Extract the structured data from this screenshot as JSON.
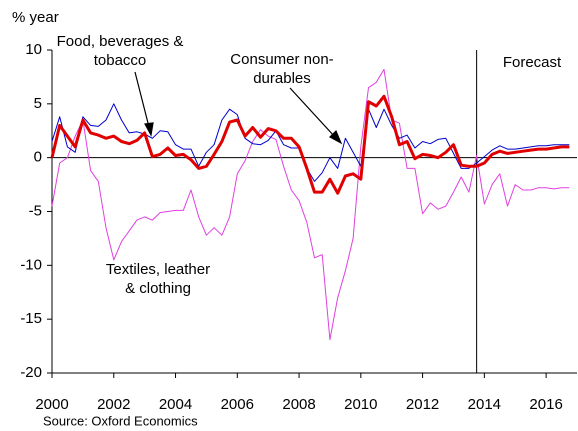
{
  "chart_data": {
    "type": "line",
    "y_label": "% year",
    "source": "Source: Oxford Economics",
    "annotations": [
      {
        "lines": [
          "Food, beverages &",
          "tobacco"
        ]
      },
      {
        "lines": [
          "Consumer non-",
          "durables"
        ]
      },
      {
        "lines": [
          "Textiles, leather",
          "& clothing"
        ]
      },
      {
        "lines": [
          "Forecast"
        ]
      }
    ],
    "forecast_x": 2013.75,
    "xlim": [
      2000,
      2017
    ],
    "xticks": [
      2000,
      2002,
      2004,
      2006,
      2008,
      2010,
      2012,
      2014,
      2016
    ],
    "ylim": [
      -20,
      10
    ],
    "yticks": [
      10,
      5,
      0,
      -5,
      -10,
      -15,
      -20
    ],
    "x": [
      2000,
      2000.25,
      2000.5,
      2000.75,
      2001,
      2001.25,
      2001.5,
      2001.75,
      2002,
      2002.25,
      2002.5,
      2002.75,
      2003,
      2003.25,
      2003.5,
      2003.75,
      2004,
      2004.25,
      2004.5,
      2004.75,
      2005,
      2005.25,
      2005.5,
      2005.75,
      2006,
      2006.25,
      2006.5,
      2006.75,
      2007,
      2007.25,
      2007.5,
      2007.75,
      2008,
      2008.25,
      2008.5,
      2008.75,
      2009,
      2009.25,
      2009.5,
      2009.75,
      2010,
      2010.25,
      2010.5,
      2010.75,
      2011,
      2011.25,
      2011.5,
      2011.75,
      2012,
      2012.25,
      2012.5,
      2012.75,
      2013,
      2013.25,
      2013.5,
      2013.75,
      2014,
      2014.25,
      2014.5,
      2014.75,
      2015,
      2015.25,
      2015.5,
      2015.75,
      2016,
      2016.25,
      2016.5,
      2016.75
    ],
    "series": [
      {
        "name": "Textiles, leather & clothing",
        "color": "#e040e0",
        "width": 1,
        "values": [
          -4.5,
          -0.5,
          0,
          2,
          3.5,
          -1.2,
          -2.2,
          -6.5,
          -9.5,
          -7.8,
          -6.8,
          -5.8,
          -5.5,
          -5.8,
          -5.1,
          -5.0,
          -4.9,
          -4.9,
          -3,
          -5.5,
          -7.2,
          -6.5,
          -7.2,
          -5.5,
          -1.5,
          -0.3,
          1.5,
          2.6,
          2,
          1.7,
          -0.8,
          -3,
          -4,
          -6,
          -9.3,
          -9,
          -16.9,
          -13,
          -10.5,
          -7.5,
          1,
          6.5,
          7,
          8.2,
          3.5,
          3.2,
          -1,
          -1,
          -5.2,
          -4.2,
          -4.8,
          -4.5,
          -3.2,
          -1.8,
          -3.2,
          0.2,
          -4.3,
          -2.5,
          -1.5,
          -4.5,
          -2.5,
          -3,
          -3,
          -2.8,
          -2.8,
          -2.9,
          -2.8,
          -2.8
        ]
      },
      {
        "name": "Food, beverages & tobacco",
        "color": "#0000cc",
        "width": 1,
        "values": [
          1.5,
          3.8,
          1,
          0.5,
          3.8,
          3,
          2.9,
          3.5,
          5,
          3.5,
          2.3,
          2.4,
          2.2,
          1.8,
          2.5,
          2.4,
          1.2,
          0.8,
          0.8,
          -0.8,
          0.5,
          1.2,
          3.5,
          4.5,
          4,
          1.8,
          1.3,
          1.2,
          1.6,
          2.5,
          1.2,
          0.9,
          0.9,
          -1,
          -2.2,
          -1.4,
          0,
          -1,
          1.8,
          0.5,
          -0.8,
          4.5,
          2.8,
          4.5,
          3,
          1.8,
          2.1,
          0.9,
          1.5,
          1.3,
          1.7,
          1.8,
          0.4,
          -1,
          -1,
          -0.5,
          0.1,
          0.7,
          1.1,
          0.8,
          0.8,
          0.9,
          1.0,
          1.1,
          1.1,
          1.2,
          1.2,
          1.2
        ]
      },
      {
        "name": "Consumer non-durables",
        "color": "#e00000",
        "width": 3,
        "values": [
          0,
          3,
          2,
          1,
          3.5,
          2.3,
          2.1,
          1.8,
          2,
          1.5,
          1.3,
          1.6,
          2.3,
          0.1,
          0.3,
          0.9,
          0.2,
          0.3,
          -0.2,
          -1,
          -0.8,
          0.3,
          1.5,
          3.3,
          3.5,
          2,
          2.8,
          1.9,
          2.7,
          2.5,
          1.8,
          1.8,
          1,
          -1,
          -3.2,
          -3.2,
          -2,
          -3.3,
          -1.7,
          -1.5,
          -2,
          5.2,
          4.8,
          5.7,
          3.8,
          1.2,
          1.5,
          -0.1,
          0.3,
          0.2,
          0,
          0.5,
          1.2,
          -0.7,
          -0.8,
          -0.8,
          -0.5,
          0.3,
          0.6,
          0.4,
          0.5,
          0.6,
          0.7,
          0.8,
          0.8,
          0.9,
          1.0,
          1.0
        ]
      }
    ]
  }
}
